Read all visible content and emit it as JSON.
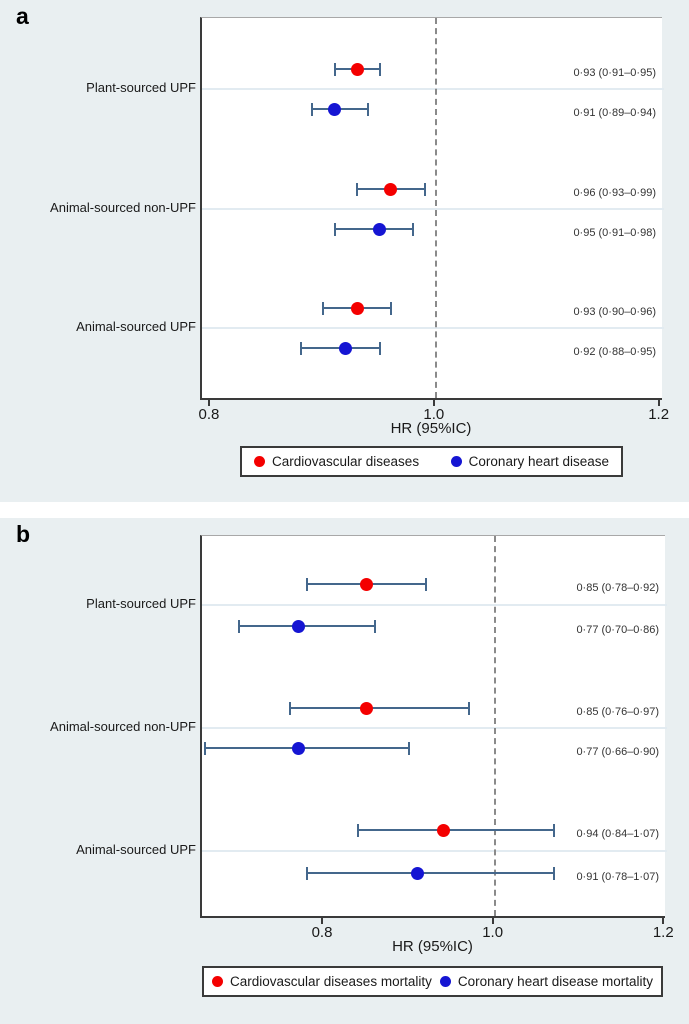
{
  "style": {
    "colors": {
      "background": "#e9eff1",
      "panel_divider": "#ffffff",
      "plot_background": "#ffffff",
      "axis_line": "#3a3a3a",
      "plot_top_border": "#a8a8a8",
      "reference_line": "#8a8a8a",
      "category_gridline": "#e2ebf1",
      "ci_line": "#44678c",
      "cardiovascular_marker": "#f40000",
      "coronary_marker": "#1515d3",
      "text": "#1a1a1a",
      "estimate_text": "#333333",
      "legend_border": "#3a3a3a"
    }
  },
  "chart_data": [
    {
      "type": "scatter",
      "subtype": "forest-plot",
      "panel_label": "a",
      "xlabel": "HR (95%IC)",
      "xticks": [
        0.8,
        1.0,
        1.2
      ],
      "xtick_labels": [
        "0.8",
        "1.0",
        "1.2"
      ],
      "xlim": [
        0.792,
        1.203
      ],
      "refline": 1.0,
      "grid": "horizontal lines at category rows only",
      "legend_position": "bottom",
      "categories": [
        "Plant-sourced UPF",
        "Animal-sourced non-UPF",
        "Animal-sourced UPF"
      ],
      "series": [
        {
          "name": "Cardiovascular diseases",
          "color": "#f40000",
          "hr": [
            0.93,
            0.96,
            0.93
          ],
          "ci_low": [
            0.91,
            0.93,
            0.9
          ],
          "ci_high": [
            0.95,
            0.99,
            0.96
          ],
          "labels": [
            "0·93 (0·91–0·95)",
            "0·96 (0·93–0·99)",
            "0·93 (0·90–0·96)"
          ]
        },
        {
          "name": "Coronary heart disease",
          "color": "#1515d3",
          "hr": [
            0.91,
            0.95,
            0.92
          ],
          "ci_low": [
            0.89,
            0.91,
            0.88
          ],
          "ci_high": [
            0.94,
            0.98,
            0.95
          ],
          "labels": [
            "0·91 (0·89–0·94)",
            "0·95 (0·91–0·98)",
            "0·92 (0·88–0·95)"
          ]
        }
      ]
    },
    {
      "type": "scatter",
      "subtype": "forest-plot",
      "panel_label": "b",
      "xlabel": "HR (95%IC)",
      "xticks": [
        0.8,
        1.0,
        1.2
      ],
      "xtick_labels": [
        "0.8",
        "1.0",
        "1.2"
      ],
      "xlim": [
        0.657,
        1.202
      ],
      "refline": 1.0,
      "grid": "horizontal lines at category rows only",
      "legend_position": "bottom",
      "categories": [
        "Plant-sourced UPF",
        "Animal-sourced non-UPF",
        "Animal-sourced UPF"
      ],
      "series": [
        {
          "name": "Cardiovascular diseases mortality",
          "color": "#f40000",
          "hr": [
            0.85,
            0.85,
            0.94
          ],
          "ci_low": [
            0.78,
            0.76,
            0.84
          ],
          "ci_high": [
            0.92,
            0.97,
            1.07
          ],
          "labels": [
            "0·85 (0·78–0·92)",
            "0·85 (0·76–0·97)",
            "0·94 (0·84–1·07)"
          ]
        },
        {
          "name": "Coronary heart disease mortality",
          "color": "#1515d3",
          "hr": [
            0.77,
            0.77,
            0.91
          ],
          "ci_low": [
            0.7,
            0.66,
            0.78
          ],
          "ci_high": [
            0.86,
            0.9,
            1.07
          ],
          "labels": [
            "0·77 (0·70–0·86)",
            "0·77 (0·66–0·90)",
            "0·91 (0·78–1·07)"
          ]
        }
      ]
    }
  ]
}
